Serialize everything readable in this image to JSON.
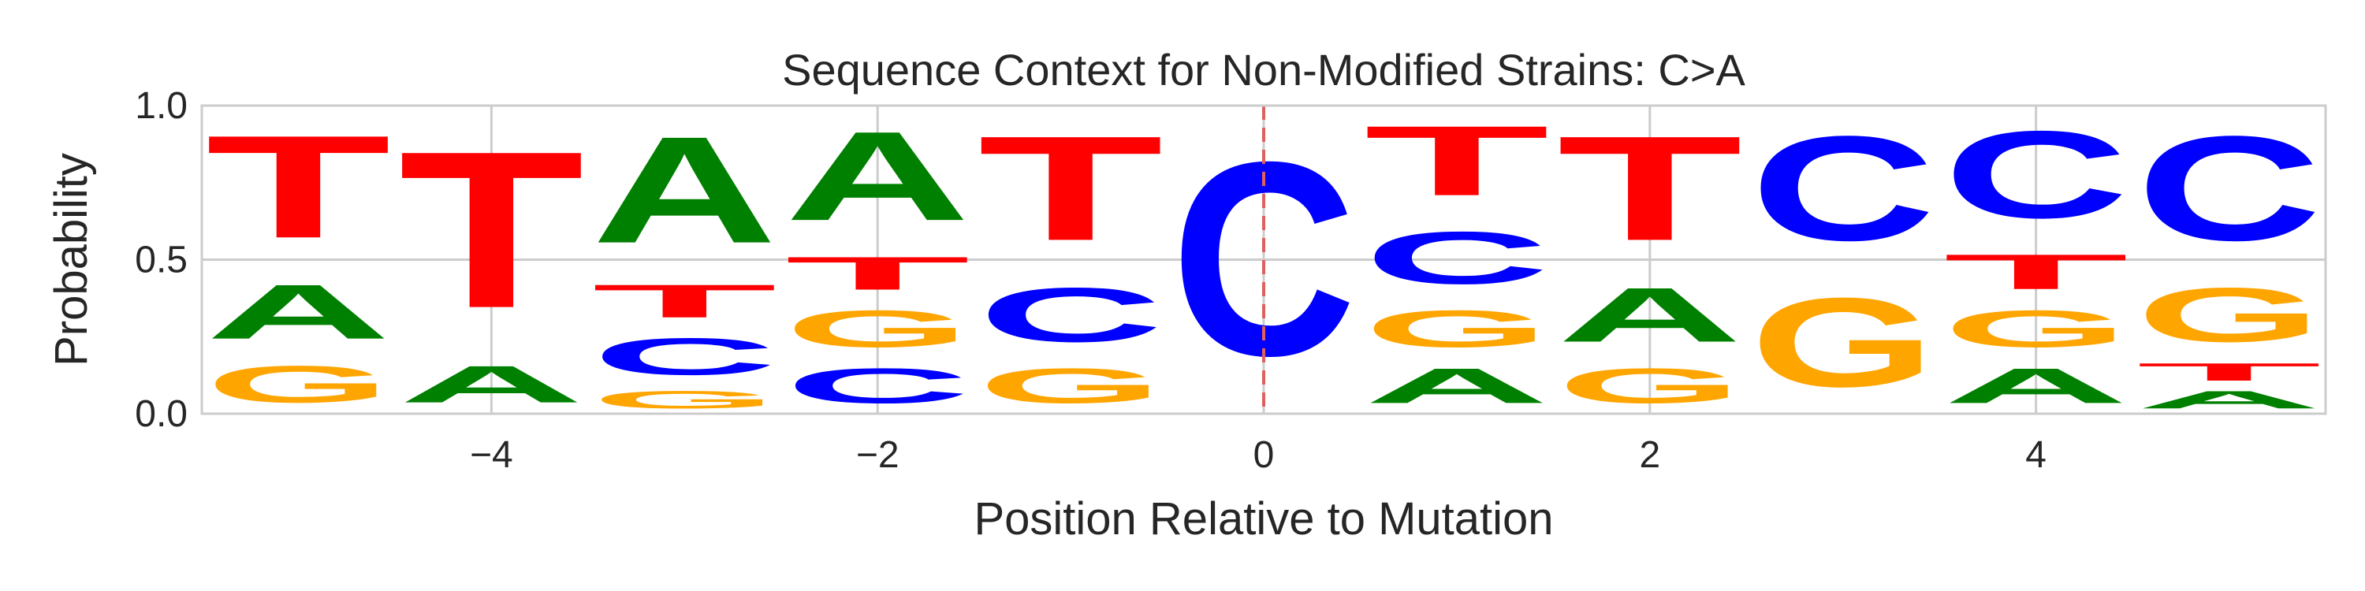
{
  "chart_data": {
    "type": "sequence-logo",
    "title": "Sequence Context for Non-Modified Strains: C>A",
    "xlabel": "Position Relative to Mutation",
    "ylabel": "Probability",
    "xlim": [
      -5.5,
      5.5
    ],
    "ylim": [
      0,
      1
    ],
    "x_ticks": [
      -4,
      -2,
      0,
      2,
      4
    ],
    "x_tick_labels": [
      "−4",
      "−2",
      "0",
      "2",
      "4"
    ],
    "y_ticks": [
      0,
      0.5,
      1
    ],
    "y_tick_labels": [
      "0.0",
      "0.5",
      "1.0"
    ],
    "grid": true,
    "mutation_marker_x": 0,
    "colors": {
      "A": "#008000",
      "C": "#0000ff",
      "G": "#ffa500",
      "T": "#ff0000",
      "marker": "#e06060"
    },
    "positions": [
      {
        "x": -5,
        "letters": [
          [
            "G",
            0.19
          ],
          [
            "A",
            0.28
          ],
          [
            "T",
            0.53
          ]
        ]
      },
      {
        "x": -4,
        "letters": [
          [
            "A",
            0.19
          ],
          [
            "T",
            0.81
          ]
        ]
      },
      {
        "x": -3,
        "letters": [
          [
            "G",
            0.09
          ],
          [
            "C",
            0.19
          ],
          [
            "T",
            0.17
          ],
          [
            "A",
            0.55
          ]
        ]
      },
      {
        "x": -2,
        "letters": [
          [
            "C",
            0.18
          ],
          [
            "G",
            0.19
          ],
          [
            "T",
            0.17
          ],
          [
            "A",
            0.46
          ]
        ]
      },
      {
        "x": -1,
        "letters": [
          [
            "G",
            0.18
          ],
          [
            "C",
            0.28
          ],
          [
            "T",
            0.54
          ]
        ]
      },
      {
        "x": 0,
        "letters": [
          [
            "C",
            1.0
          ]
        ]
      },
      {
        "x": 1,
        "letters": [
          [
            "A",
            0.18
          ],
          [
            "G",
            0.19
          ],
          [
            "C",
            0.27
          ],
          [
            "T",
            0.36
          ]
        ]
      },
      {
        "x": 2,
        "letters": [
          [
            "G",
            0.18
          ],
          [
            "A",
            0.28
          ],
          [
            "T",
            0.54
          ]
        ]
      },
      {
        "x": 3,
        "letters": [
          [
            "G",
            0.46
          ],
          [
            "C",
            0.54
          ]
        ]
      },
      {
        "x": 4,
        "letters": [
          [
            "A",
            0.18
          ],
          [
            "G",
            0.19
          ],
          [
            "T",
            0.18
          ],
          [
            "C",
            0.45
          ]
        ]
      },
      {
        "x": 5,
        "letters": [
          [
            "A",
            0.09
          ],
          [
            "T",
            0.09
          ],
          [
            "G",
            0.28
          ],
          [
            "C",
            0.54
          ]
        ]
      }
    ]
  }
}
